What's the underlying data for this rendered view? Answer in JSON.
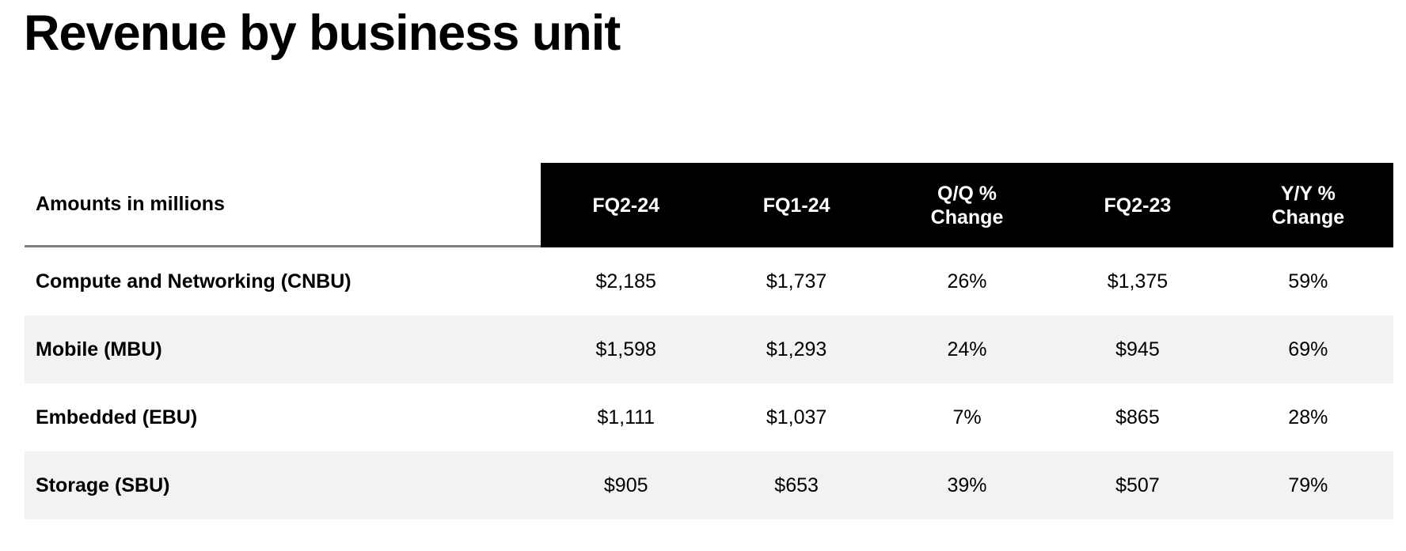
{
  "page": {
    "title": "Revenue by business unit"
  },
  "table": {
    "corner_label": "Amounts in millions",
    "columns": [
      "FQ2-24",
      "FQ1-24",
      "Q/Q %\nChange",
      "FQ2-23",
      "Y/Y %\nChange"
    ],
    "rows": [
      {
        "label": "Compute and Networking (CNBU)",
        "values": [
          "$2,185",
          "$1,737",
          "26%",
          "$1,375",
          "59%"
        ]
      },
      {
        "label": "Mobile (MBU)",
        "values": [
          "$1,598",
          "$1,293",
          "24%",
          "$945",
          "69%"
        ]
      },
      {
        "label": "Embedded (EBU)",
        "values": [
          "$1,111",
          "$1,037",
          "7%",
          "$865",
          "28%"
        ]
      },
      {
        "label": "Storage (SBU)",
        "values": [
          "$905",
          "$653",
          "39%",
          "$507",
          "79%"
        ]
      }
    ],
    "colors": {
      "header_bg": "#000000",
      "header_text": "#ffffff",
      "row_alt_bg": "#f2f2f2",
      "divider": "#7f7f7f",
      "text": "#000000"
    }
  },
  "chart_data": {
    "type": "table",
    "title": "Revenue by business unit",
    "unit_note": "Amounts in millions",
    "categories": [
      "FQ2-24",
      "FQ1-24",
      "Q/Q % Change",
      "FQ2-23",
      "Y/Y % Change"
    ],
    "series": [
      {
        "name": "Compute and Networking (CNBU)",
        "values": [
          2185,
          1737,
          "26%",
          1375,
          "59%"
        ]
      },
      {
        "name": "Mobile (MBU)",
        "values": [
          1598,
          1293,
          "24%",
          945,
          "69%"
        ]
      },
      {
        "name": "Embedded (EBU)",
        "values": [
          1111,
          1037,
          "7%",
          865,
          "28%"
        ]
      },
      {
        "name": "Storage (SBU)",
        "values": [
          905,
          653,
          "39%",
          507,
          "79%"
        ]
      }
    ]
  }
}
